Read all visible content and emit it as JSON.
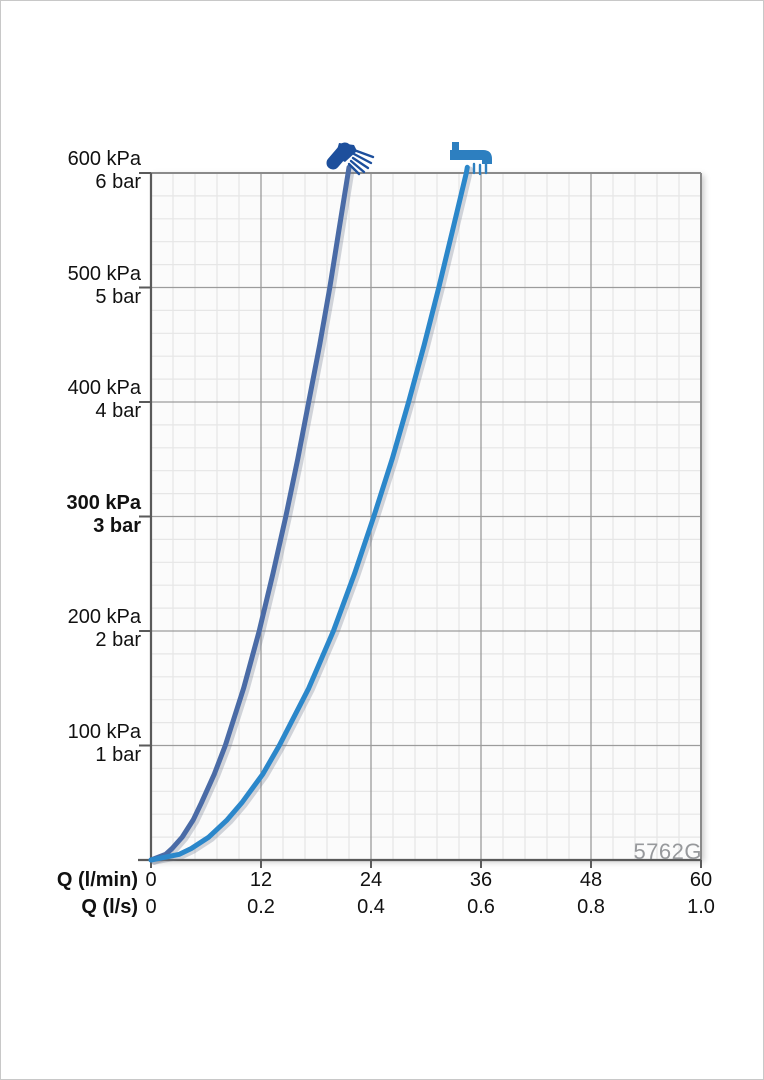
{
  "watermark": {
    "text": "5762G",
    "color": "#97999c"
  },
  "axes": {
    "row1_label": "Q (l/min)",
    "row2_label": "Q (l/s)",
    "row1_values": [
      "0",
      "12",
      "24",
      "36",
      "48",
      "60"
    ],
    "row2_values": [
      "0",
      "0.2",
      "0.4",
      "0.6",
      "0.8",
      "1.0"
    ],
    "y_labels": [
      {
        "kpa": "600 kPa",
        "bar": "6 bar",
        "value": 600,
        "bold": false
      },
      {
        "kpa": "500 kPa",
        "bar": "5 bar",
        "value": 500,
        "bold": false
      },
      {
        "kpa": "400 kPa",
        "bar": "4 bar",
        "value": 400,
        "bold": false
      },
      {
        "kpa": "300 kPa",
        "bar": "3 bar",
        "value": 300,
        "bold": true
      },
      {
        "kpa": "200 kPa",
        "bar": "2 bar",
        "value": 200,
        "bold": false
      },
      {
        "kpa": "100 kPa",
        "bar": "1 bar",
        "value": 100,
        "bold": false
      }
    ]
  },
  "colors": {
    "curve_hand_shower": "#4a6ba6",
    "curve_spout": "#2b87ca",
    "icon_hand_shower": "#1d4f9c",
    "icon_spout": "#2d7fc0",
    "grid_minor": "#e6e6e6",
    "grid_major": "#9c9c9c",
    "plot_border": "#8a8a8a",
    "axis": "#5a5a5a",
    "plot_background": "#fbfbfb",
    "curve_shadow": "rgba(110,120,140,0.30)"
  },
  "chart_data": {
    "type": "line",
    "title": "",
    "watermark": "5762G",
    "x_axis": {
      "row1_label": "Q (l/min)",
      "row1_ticks": [
        0,
        12,
        24,
        36,
        48,
        60
      ],
      "row2_label": "Q (l/s)",
      "row2_ticks": [
        0,
        0.2,
        0.4,
        0.6,
        0.8,
        1.0
      ],
      "range_lmin": [
        0,
        60
      ]
    },
    "y_axis": {
      "units": [
        "kPa",
        "bar"
      ],
      "ticks_kpa": [
        0,
        100,
        200,
        300,
        400,
        500,
        600
      ],
      "ticks_bar": [
        0,
        1,
        2,
        3,
        4,
        5,
        6
      ],
      "emphasized_kpa": 300,
      "range_kpa": [
        0,
        600
      ]
    },
    "grid": {
      "minor_step_lmin": 2.4,
      "minor_step_kpa": 20,
      "major_step_lmin": 12,
      "major_step_kpa": 100
    },
    "legend_position": "icons-above-curve-tops",
    "series": [
      {
        "name": "hand shower",
        "icon": "hand-shower-icon",
        "color": "#4a6ba6",
        "readings_kpa": [
          100,
          200,
          300,
          400,
          500,
          600
        ],
        "readings_lmin": [
          8.1,
          11.8,
          14.7,
          17.2,
          19.5,
          21.5
        ],
        "points": {
          "kpa": [
            0,
            5,
            10,
            20,
            35,
            50,
            75,
            100,
            150,
            200,
            250,
            300,
            350,
            400,
            450,
            500,
            550,
            600,
            605
          ],
          "q_lmin": [
            0,
            1.6,
            2.3,
            3.4,
            4.6,
            5.5,
            6.9,
            8.1,
            10.1,
            11.8,
            13.3,
            14.7,
            16.0,
            17.2,
            18.4,
            19.5,
            20.5,
            21.5,
            21.6
          ]
        }
      },
      {
        "name": "spout",
        "icon": "spout-icon",
        "color": "#2b87ca",
        "readings_kpa": [
          100,
          200,
          300,
          400,
          500,
          600
        ],
        "readings_lmin": [
          14.0,
          19.9,
          24.3,
          28.1,
          31.4,
          34.4
        ],
        "points": {
          "kpa": [
            0,
            5,
            10,
            20,
            35,
            50,
            75,
            100,
            150,
            200,
            250,
            300,
            350,
            400,
            450,
            500,
            550,
            600,
            605
          ],
          "q_lmin": [
            0,
            3.1,
            4.4,
            6.3,
            8.3,
            9.9,
            12.2,
            14.0,
            17.2,
            19.9,
            22.2,
            24.3,
            26.3,
            28.1,
            29.8,
            31.4,
            32.9,
            34.4,
            34.5
          ]
        }
      }
    ]
  }
}
